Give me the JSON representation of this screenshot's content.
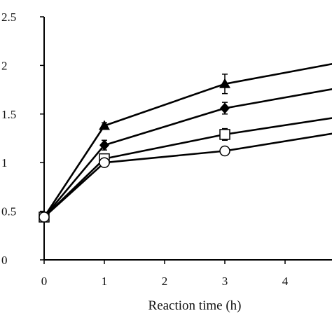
{
  "chart_data": {
    "type": "line",
    "title": "",
    "xlabel": "Reaction time (h)",
    "ylabel": "",
    "xlim": [
      0,
      4.9
    ],
    "ylim": [
      0,
      2.5
    ],
    "x_ticks": [
      "0",
      "1",
      "2",
      "3",
      "4"
    ],
    "y_ticks": [
      "0",
      "0.5",
      "1",
      "1.5",
      "2",
      "2.5"
    ],
    "grid": false,
    "legend": "none",
    "series": [
      {
        "marker": "filled-triangle",
        "x": [
          0,
          1,
          3,
          5
        ],
        "y": [
          0.44,
          1.38,
          1.81,
          2.04
        ],
        "error": [
          0.02,
          0.03,
          0.1,
          0.04
        ]
      },
      {
        "marker": "filled-diamond",
        "x": [
          0,
          1,
          3,
          5
        ],
        "y": [
          0.44,
          1.18,
          1.56,
          1.78
        ],
        "error": [
          0.02,
          0.05,
          0.06,
          0.04
        ]
      },
      {
        "marker": "open-square",
        "x": [
          0,
          1,
          3,
          5
        ],
        "y": [
          0.44,
          1.04,
          1.29,
          1.48
        ],
        "error": [
          0.02,
          0.04,
          0.06,
          0.04
        ]
      },
      {
        "marker": "open-circle",
        "x": [
          0,
          1,
          3,
          5
        ],
        "y": [
          0.44,
          1.0,
          1.12,
          1.32
        ],
        "error": [
          0.02,
          0.02,
          0.02,
          0.03
        ]
      }
    ],
    "colors": {
      "line": "#000000",
      "open_marker_fill": "#ffffff"
    }
  }
}
